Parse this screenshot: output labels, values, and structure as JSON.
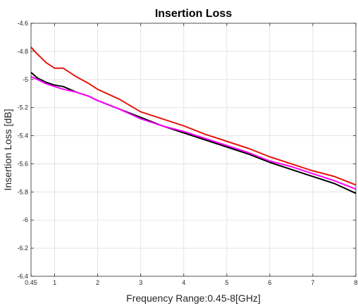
{
  "chart_data": {
    "type": "line",
    "title": "Insertion Loss",
    "xlabel": "Frequency Range:0.45-8[GHz]",
    "ylabel": "Insertion Loss [dB]",
    "xlim": [
      0.45,
      8
    ],
    "ylim": [
      -6.4,
      -4.6
    ],
    "xticks": [
      0.45,
      1,
      2,
      3,
      4,
      5,
      6,
      7,
      8
    ],
    "xtick_labels": [
      "0.45",
      "1",
      "2",
      "3",
      "4",
      "5",
      "6",
      "7",
      "8"
    ],
    "yticks": [
      -6.4,
      -6.2,
      -6,
      -5.8,
      -5.6,
      -5.4,
      -5.2,
      -5,
      -4.8,
      -4.6
    ],
    "ytick_labels": [
      "-6.4",
      "-6.2",
      "-6",
      "-5.8",
      "-5.6",
      "-5.4",
      "-5.2",
      "-5",
      "-4.8",
      "-4.6"
    ],
    "grid": true,
    "series": [
      {
        "color": "#e3170d",
        "x": [
          0.45,
          0.6,
          0.8,
          1.0,
          1.2,
          1.5,
          1.8,
          2.0,
          2.5,
          3.0,
          3.5,
          4.0,
          4.5,
          5.0,
          5.5,
          6.0,
          6.5,
          7.0,
          7.5,
          8.0
        ],
        "y": [
          -4.77,
          -4.82,
          -4.88,
          -4.92,
          -4.92,
          -4.98,
          -5.03,
          -5.07,
          -5.14,
          -5.23,
          -5.28,
          -5.33,
          -5.39,
          -5.44,
          -5.49,
          -5.55,
          -5.6,
          -5.65,
          -5.69,
          -5.75
        ]
      },
      {
        "color": "#000000",
        "x": [
          0.45,
          0.6,
          0.8,
          1.0,
          1.2,
          1.5,
          1.8,
          2.0,
          2.5,
          3.0,
          3.5,
          4.0,
          4.5,
          5.0,
          5.5,
          6.0,
          6.5,
          7.0,
          7.5,
          8.0
        ],
        "y": [
          -4.95,
          -4.99,
          -5.02,
          -5.04,
          -5.05,
          -5.09,
          -5.12,
          -5.15,
          -5.21,
          -5.27,
          -5.33,
          -5.38,
          -5.43,
          -5.48,
          -5.53,
          -5.59,
          -5.64,
          -5.69,
          -5.74,
          -5.81
        ]
      },
      {
        "color": "#ff00ff",
        "x": [
          0.45,
          0.6,
          0.8,
          1.0,
          1.2,
          1.5,
          1.8,
          2.0,
          2.5,
          3.0,
          3.5,
          4.0,
          4.5,
          5.0,
          5.5,
          6.0,
          6.5,
          7.0,
          7.5,
          8.0
        ],
        "y": [
          -4.98,
          -5.0,
          -5.03,
          -5.05,
          -5.07,
          -5.09,
          -5.12,
          -5.15,
          -5.21,
          -5.28,
          -5.33,
          -5.37,
          -5.42,
          -5.47,
          -5.52,
          -5.58,
          -5.62,
          -5.67,
          -5.72,
          -5.78
        ]
      }
    ]
  }
}
